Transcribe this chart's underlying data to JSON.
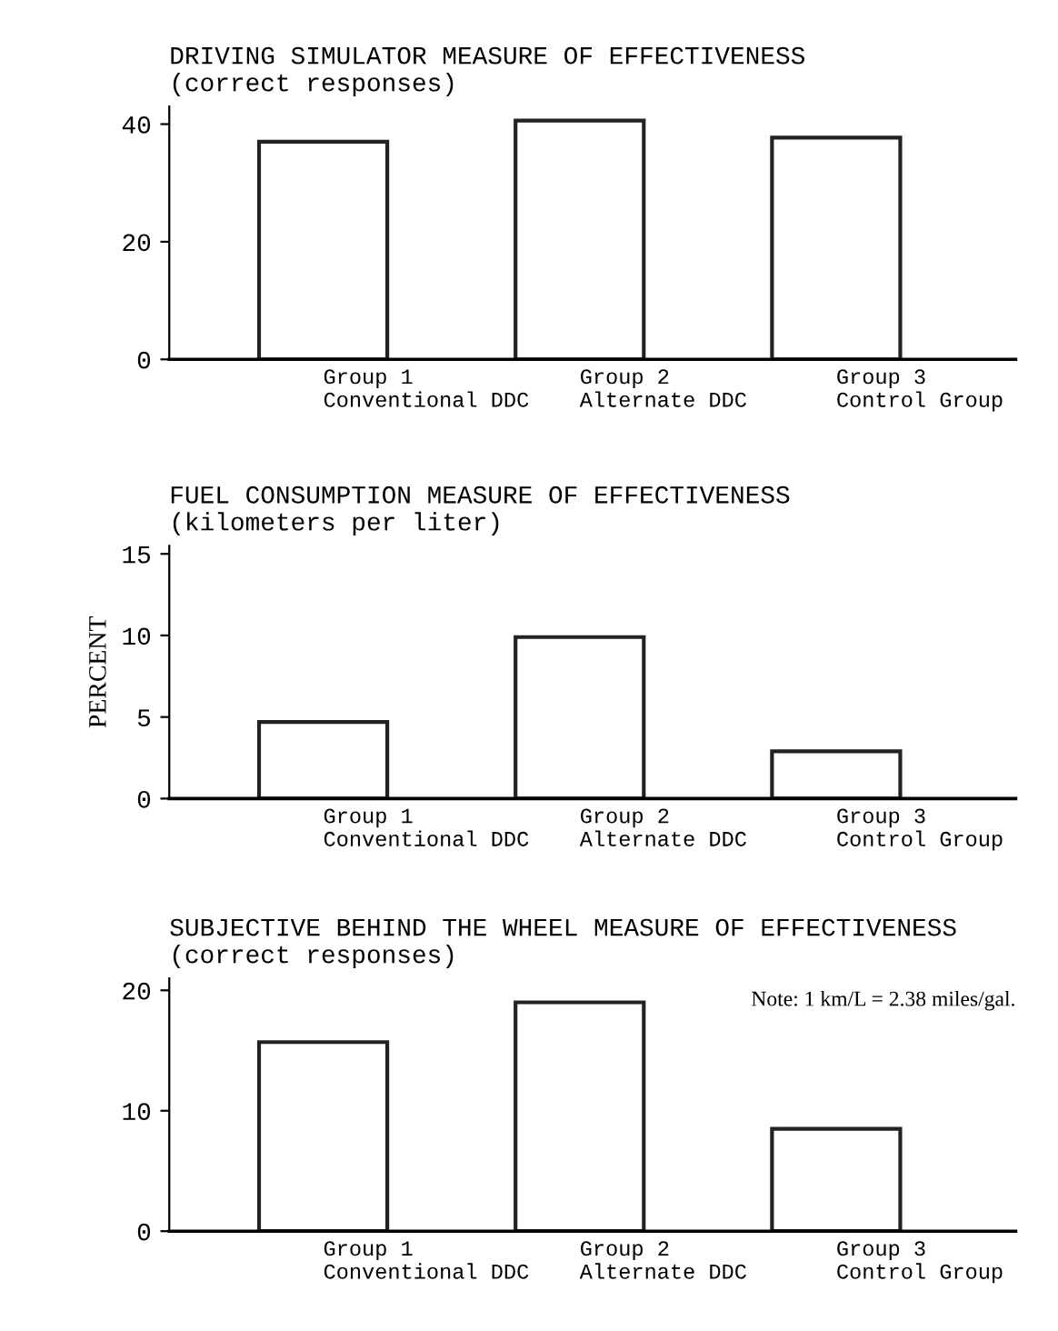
{
  "chart_data": [
    {
      "type": "bar",
      "title": "DRIVING SIMULATOR MEASURE OF EFFECTIVENESS",
      "subtitle": "(correct responses)",
      "categories": [
        "Group 1\nConventional DDC",
        "Group 2\nAlternate DDC",
        "Group 3\nControl Group"
      ],
      "values": [
        37.0,
        40.6,
        37.7
      ],
      "color": "#ffffff",
      "ylim": [
        0,
        43
      ],
      "yticks": [
        0,
        20,
        40
      ],
      "grid": false,
      "legend": false
    },
    {
      "type": "bar",
      "title": "FUEL CONSUMPTION MEASURE OF EFFECTIVENESS",
      "subtitle": "(kilometers per liter)",
      "ylabel": "PERCENT",
      "categories": [
        "Group 1\nConventional DDC",
        "Group 2\nAlternate DDC",
        "Group 3\nControl Group"
      ],
      "values": [
        4.7,
        9.9,
        2.9
      ],
      "color": "#ffffff",
      "ylim": [
        0,
        15.5
      ],
      "yticks": [
        0,
        5,
        10,
        15
      ],
      "grid": false,
      "legend": false
    },
    {
      "type": "bar",
      "title": "SUBJECTIVE BEHIND THE WHEEL MEASURE OF EFFECTIVENESS",
      "subtitle": "(correct responses)",
      "annotations": [
        "Note: 1 km/L = 2.38 miles/gal."
      ],
      "categories": [
        "Group 1\nConventional DDC",
        "Group 2\nAlternate DDC",
        "Group 3\nControl Group"
      ],
      "values": [
        15.7,
        19.0,
        8.5
      ],
      "color": "#ffffff",
      "ylim": [
        0,
        21
      ],
      "yticks": [
        0,
        10,
        20
      ],
      "grid": false,
      "legend": false
    }
  ]
}
